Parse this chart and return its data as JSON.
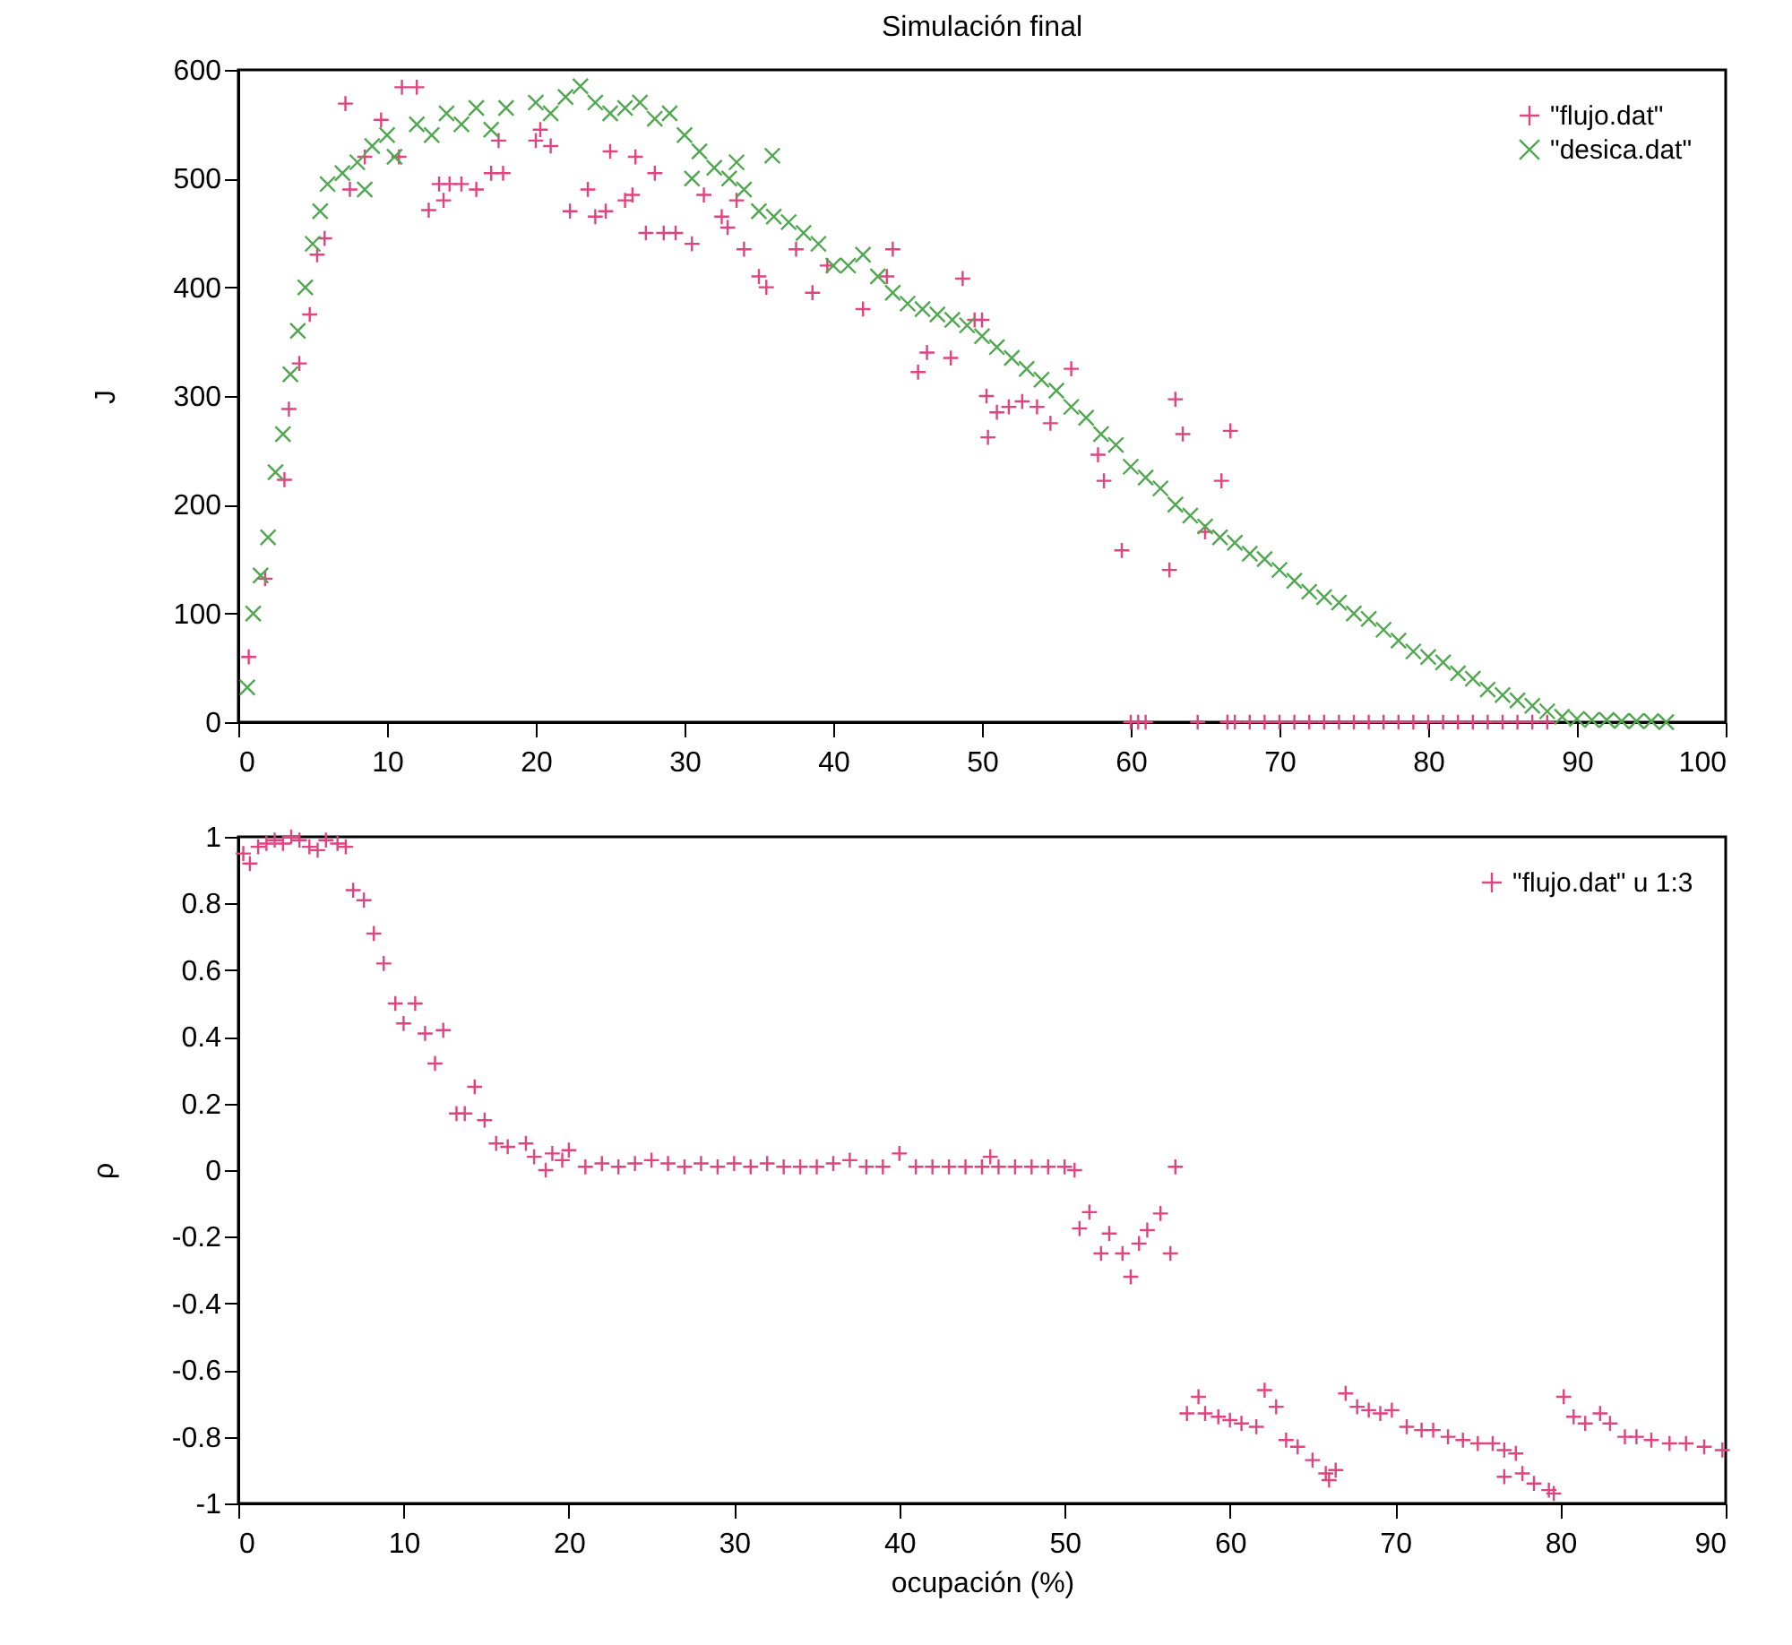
{
  "chart_data": [
    {
      "type": "scatter",
      "title": "Simulación final",
      "ylabel": "J",
      "xlim": [
        0,
        100
      ],
      "ylim": [
        0,
        600
      ],
      "xticks": [
        0,
        10,
        20,
        30,
        40,
        50,
        60,
        70,
        80,
        90,
        100
      ],
      "yticks": [
        0,
        100,
        200,
        300,
        400,
        500,
        600
      ],
      "grid": false,
      "legend": "top right",
      "marker": "cross",
      "series": [
        {
          "name": "\"flujo.dat\"",
          "color": "#e0437f",
          "x": [
            0.7,
            1.8,
            3.1,
            3.4,
            4.1,
            4.8,
            5.3,
            5.8,
            7.2,
            7.5,
            8.5,
            9.6,
            10.8,
            11,
            12,
            12.8,
            13.5,
            13.8,
            14.2,
            15,
            16,
            17,
            17.5,
            17.8,
            20,
            20.3,
            21,
            22.3,
            23.5,
            24,
            24.7,
            25,
            26,
            26.5,
            26.7,
            27.4,
            28,
            28.6,
            29.4,
            30.5,
            31.3,
            32.5,
            32.9,
            33.5,
            34,
            35,
            35.5,
            37.5,
            38.6,
            39.6,
            42,
            43.6,
            44,
            45.7,
            46.3,
            47.9,
            48.7,
            49.5,
            50,
            50.3,
            50.4,
            51,
            51.8,
            52.7,
            53.7,
            54.6,
            56,
            57.8,
            58.2,
            59.4,
            60,
            60.5,
            61,
            62.6,
            63,
            63.5,
            64.5,
            65,
            66.1,
            66.7,
            66.5,
            67,
            68,
            69,
            70,
            71,
            72,
            73,
            74,
            75,
            76,
            77,
            78,
            79,
            80,
            81,
            82,
            83,
            84,
            85,
            86,
            87,
            88
          ],
          "values": [
            60,
            132,
            223,
            288,
            330,
            375,
            430,
            445,
            569,
            490,
            520,
            554,
            520,
            584,
            584,
            471,
            495,
            480,
            495,
            495,
            490,
            505,
            535,
            505,
            535,
            545,
            530,
            470,
            490,
            465,
            470,
            525,
            480,
            485,
            520,
            450,
            505,
            450,
            450,
            440,
            485,
            465,
            455,
            480,
            435,
            410,
            400,
            435,
            395,
            420,
            380,
            410,
            435,
            322,
            340,
            335,
            408,
            370,
            370,
            300,
            262,
            285,
            290,
            295,
            290,
            275,
            325,
            246,
            222,
            158,
            0,
            0,
            0,
            140,
            297,
            265,
            0,
            175,
            222,
            268,
            0,
            0,
            0,
            0,
            0,
            0,
            0,
            0,
            0,
            0,
            0,
            0,
            0,
            0,
            0,
            0,
            0,
            0,
            0,
            0,
            0,
            0,
            0
          ]
        },
        {
          "name": "\"desica.dat\"",
          "color": "#4fa84f",
          "x": [
            0.6,
            1,
            1.5,
            2,
            2.5,
            3,
            3.5,
            4,
            4.5,
            5,
            5.5,
            6,
            7,
            8,
            8.5,
            9,
            10,
            10.5,
            12,
            13,
            14,
            15,
            16,
            17,
            18,
            20,
            21,
            22,
            23,
            24,
            25,
            26,
            27,
            28,
            29,
            30,
            30.5,
            31,
            32,
            33,
            33.5,
            34,
            35,
            35.9,
            36,
            37,
            38,
            39,
            40,
            41,
            42,
            43,
            44,
            45,
            46,
            47,
            48,
            49,
            50,
            51,
            52,
            53,
            54,
            55,
            56,
            57,
            58,
            59,
            60,
            61,
            62,
            63,
            64,
            65,
            66,
            67,
            68,
            69,
            70,
            71,
            72,
            73,
            74,
            75,
            76,
            77,
            78,
            79,
            80,
            81,
            82,
            83,
            84,
            85,
            86,
            87,
            88,
            89,
            90,
            91,
            92,
            93,
            94,
            95,
            96
          ],
          "values": [
            32,
            100,
            135,
            170,
            230,
            265,
            320,
            360,
            400,
            440,
            470,
            495,
            505,
            515,
            490,
            530,
            540,
            520,
            550,
            540,
            560,
            550,
            565,
            545,
            565,
            570,
            560,
            575,
            585,
            570,
            560,
            565,
            570,
            555,
            560,
            540,
            500,
            525,
            510,
            500,
            515,
            490,
            470,
            521,
            465,
            460,
            450,
            440,
            420,
            420,
            430,
            410,
            395,
            385,
            380,
            375,
            370,
            365,
            355,
            345,
            335,
            325,
            315,
            305,
            290,
            280,
            265,
            255,
            235,
            225,
            215,
            200,
            190,
            180,
            170,
            165,
            155,
            150,
            140,
            130,
            120,
            115,
            110,
            100,
            95,
            85,
            75,
            65,
            60,
            55,
            45,
            40,
            30,
            25,
            20,
            15,
            10,
            5,
            3,
            2,
            2,
            1,
            1,
            1,
            0
          ]
        }
      ]
    },
    {
      "type": "scatter",
      "xlabel": "ocupación (%)",
      "ylabel": "ρ",
      "xlim": [
        0,
        90
      ],
      "ylim": [
        -1,
        1
      ],
      "xticks": [
        0,
        10,
        20,
        30,
        40,
        50,
        60,
        70,
        80,
        90
      ],
      "yticks": [
        -1,
        -0.8,
        -0.6,
        -0.4,
        -0.2,
        0,
        0.2,
        0.4,
        0.6,
        0.8,
        1
      ],
      "grid": false,
      "legend": "top right",
      "marker": "cross",
      "series": [
        {
          "name": "\"flujo.dat\" u 1:3",
          "color": "#e0437f",
          "x": [
            0.3,
            0.7,
            1.2,
            1.7,
            2.2,
            2.7,
            3.2,
            3.7,
            4.3,
            4.8,
            5.3,
            6,
            6.5,
            6.95,
            7.6,
            8.2,
            8.8,
            9.5,
            10,
            10.7,
            11.3,
            11.9,
            12.4,
            13.2,
            13.7,
            14.3,
            14.9,
            15.6,
            16.3,
            17.4,
            17.9,
            18.6,
            19,
            19.6,
            20,
            21,
            22,
            23,
            24,
            25,
            26,
            27,
            28,
            29,
            30,
            31,
            32,
            33,
            34,
            35,
            36,
            37,
            38,
            39,
            40,
            41,
            42,
            43,
            44,
            45,
            45.5,
            46,
            47,
            48,
            49,
            50,
            50.6,
            50.9,
            51.5,
            52.2,
            52.7,
            53.5,
            54,
            54.5,
            55,
            55.8,
            56.4,
            56.7,
            57.4,
            58.1,
            58.5,
            59.3,
            60,
            60.7,
            61.6,
            62.1,
            62.8,
            63.4,
            64.1,
            65,
            65.8,
            66,
            66.4,
            67,
            67.7,
            68.4,
            69.1,
            69.8,
            70.7,
            71.6,
            72.3,
            73.2,
            74.1,
            75,
            75.9,
            76.6,
            76.6,
            77.3,
            77.7,
            78.4,
            79.3,
            79.6,
            80.2,
            80.8,
            81.5,
            82.4,
            83,
            83.9,
            84.6,
            85.5,
            86.6,
            87.6,
            88.7,
            89.8
          ],
          "values": [
            0.95,
            0.92,
            0.97,
            0.98,
            0.99,
            0.98,
            1,
            0.99,
            0.97,
            0.96,
            0.99,
            0.98,
            0.97,
            0.84,
            0.81,
            0.71,
            0.62,
            0.5,
            0.44,
            0.5,
            0.41,
            0.32,
            0.42,
            0.17,
            0.17,
            0.25,
            0.15,
            0.08,
            0.07,
            0.08,
            0.04,
            0,
            0.05,
            0.03,
            0.06,
            0.01,
            0.02,
            0.01,
            0.02,
            0.03,
            0.02,
            0.01,
            0.02,
            0.01,
            0.02,
            0.01,
            0.02,
            0.01,
            0.01,
            0.01,
            0.02,
            0.03,
            0.01,
            0.01,
            0.05,
            0.01,
            0.01,
            0.01,
            0.01,
            0.01,
            0.04,
            0.01,
            0.01,
            0.01,
            0.01,
            0.01,
            0,
            -0.175,
            -0.126,
            -0.25,
            -0.19,
            -0.25,
            -0.32,
            -0.22,
            -0.18,
            -0.13,
            -0.25,
            0.01,
            -0.73,
            -0.68,
            -0.73,
            -0.74,
            -0.75,
            -0.76,
            -0.77,
            -0.66,
            -0.71,
            -0.81,
            -0.83,
            -0.87,
            -0.91,
            -0.93,
            -0.9,
            -0.67,
            -0.71,
            -0.72,
            -0.73,
            -0.72,
            -0.77,
            -0.78,
            -0.78,
            -0.8,
            -0.81,
            -0.82,
            -0.82,
            -0.84,
            -0.92,
            -0.85,
            -0.91,
            -0.94,
            -0.96,
            -0.97,
            -0.68,
            -0.74,
            -0.76,
            -0.73,
            -0.76,
            -0.8,
            -0.8,
            -0.81,
            -0.82,
            -0.82,
            -0.83,
            -0.84
          ]
        }
      ]
    }
  ]
}
